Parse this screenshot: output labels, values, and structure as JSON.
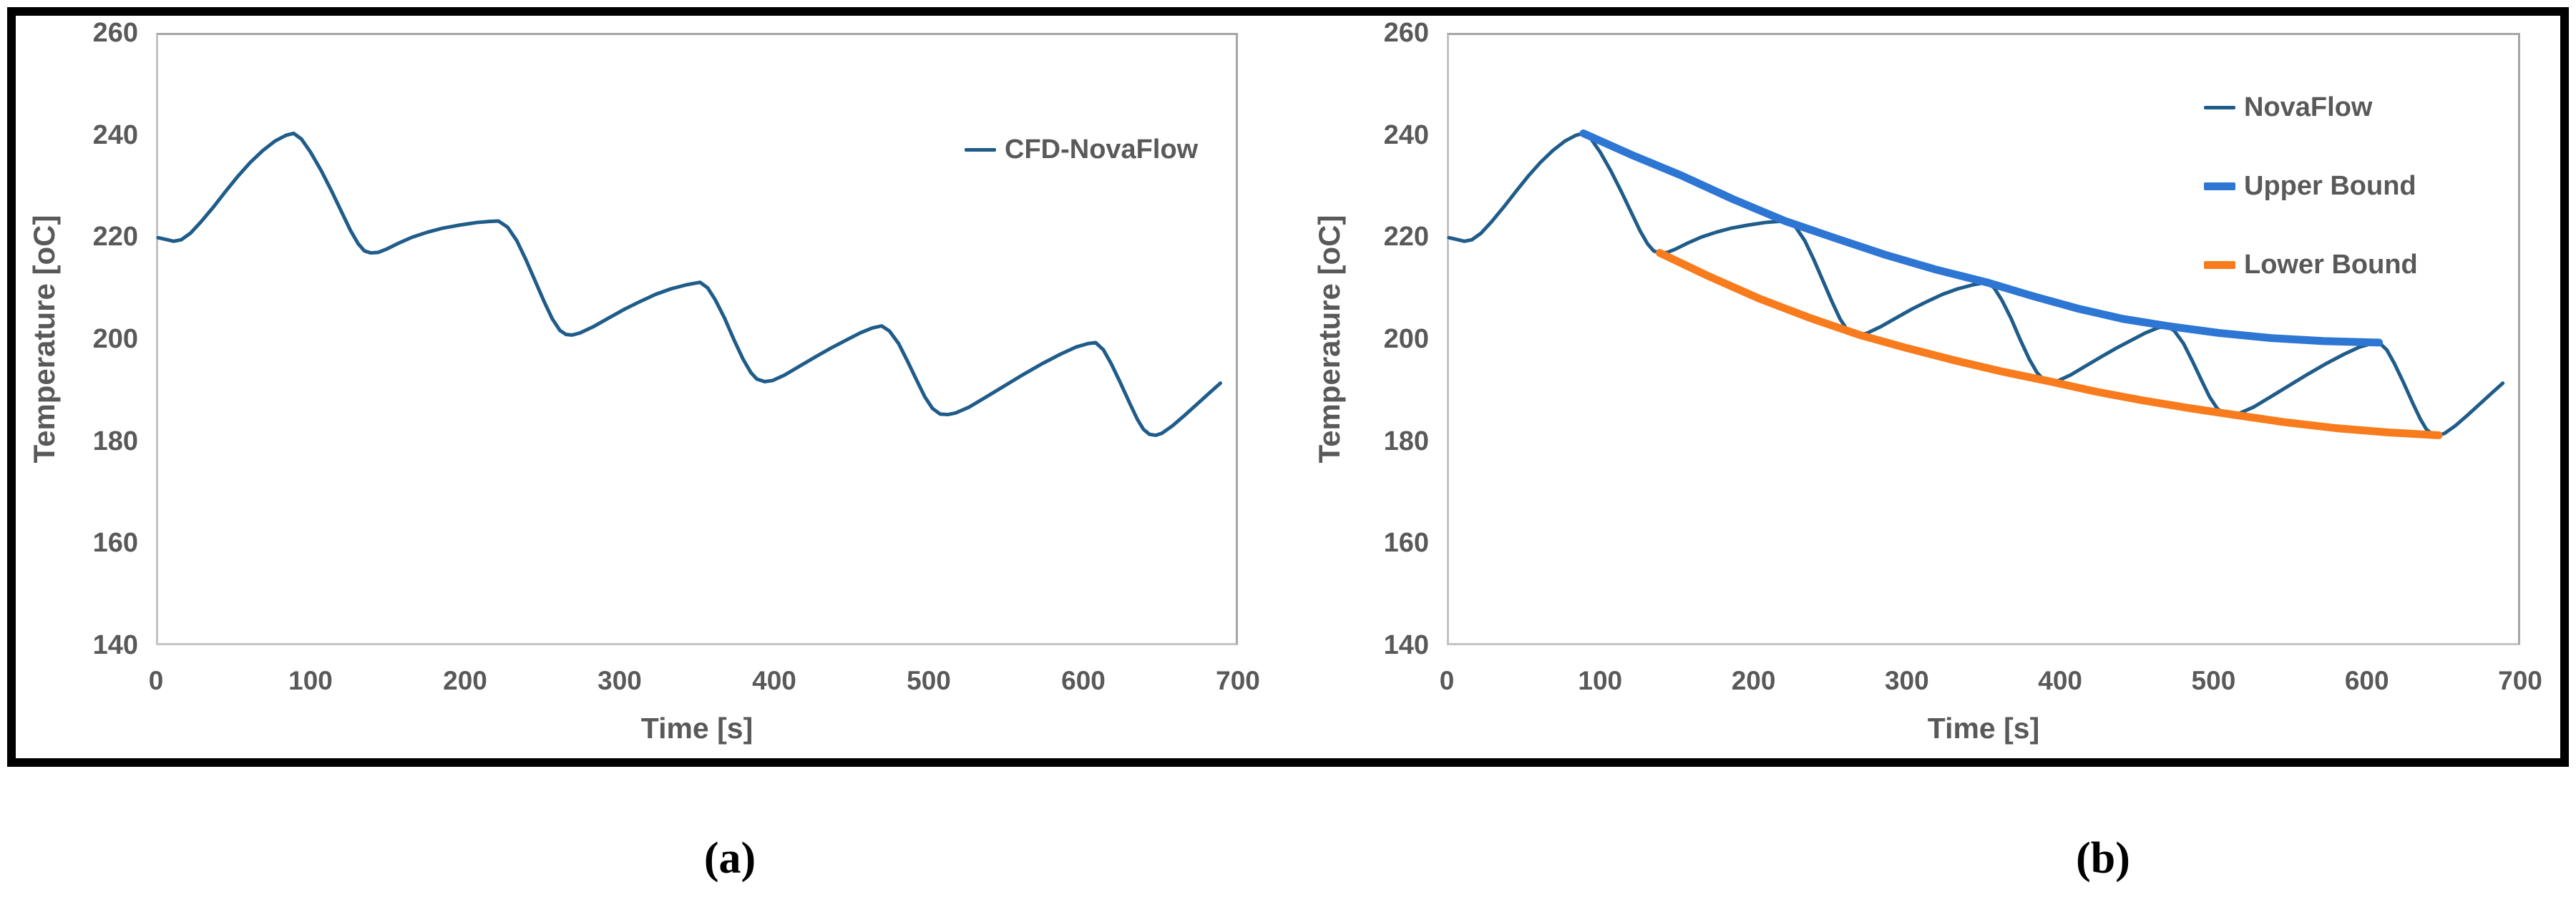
{
  "figure": {
    "background": "#ffffff",
    "border_color": "#000000",
    "plot_border_color": "#bfbfbf",
    "tick_text_color": "#595959"
  },
  "chart_data": [
    {
      "type": "line",
      "caption": "(a)",
      "title": "",
      "xlabel": "Time [s]",
      "ylabel": "Temperature [oC]",
      "xlim": [
        0,
        700
      ],
      "ylim": [
        140,
        260
      ],
      "xticks": [
        0,
        100,
        200,
        300,
        400,
        500,
        600,
        700
      ],
      "yticks": [
        260,
        240,
        220,
        200,
        180,
        160,
        140
      ],
      "grid": false,
      "legend_position": "upper-right-inside",
      "series": [
        {
          "name": "CFD-NovaFlow",
          "color": "#1f5c8a",
          "stroke_width": 5,
          "points": [
            [
              0,
              220
            ],
            [
              6,
              219.6
            ],
            [
              10,
              219.3
            ],
            [
              15,
              219.6
            ],
            [
              21,
              220.9
            ],
            [
              28,
              223.2
            ],
            [
              36,
              226.1
            ],
            [
              44,
              229.2
            ],
            [
              52,
              232.2
            ],
            [
              60,
              234.9
            ],
            [
              68,
              237.2
            ],
            [
              76,
              239.1
            ],
            [
              83,
              240.2
            ],
            [
              88,
              240.6
            ],
            [
              93,
              239.5
            ],
            [
              99,
              236.9
            ],
            [
              106,
              233.2
            ],
            [
              113,
              229
            ],
            [
              119,
              225.2
            ],
            [
              125,
              221.4
            ],
            [
              130,
              218.8
            ],
            [
              134,
              217.4
            ],
            [
              138,
              217
            ],
            [
              143,
              217.1
            ],
            [
              148,
              217.7
            ],
            [
              156,
              218.9
            ],
            [
              165,
              220.1
            ],
            [
              175,
              221.1
            ],
            [
              185,
              221.9
            ],
            [
              196,
              222.5
            ],
            [
              207,
              223
            ],
            [
              215,
              223.2
            ],
            [
              221,
              223.3
            ],
            [
              227,
              222.1
            ],
            [
              233,
              219.4
            ],
            [
              239,
              215.6
            ],
            [
              245,
              211.4
            ],
            [
              251,
              207.2
            ],
            [
              256,
              204
            ],
            [
              261,
              201.7
            ],
            [
              265,
              200.9
            ],
            [
              269,
              200.8
            ],
            [
              274,
              201.2
            ],
            [
              283,
              202.5
            ],
            [
              293,
              204.2
            ],
            [
              303,
              205.9
            ],
            [
              313,
              207.4
            ],
            [
              323,
              208.8
            ],
            [
              333,
              209.9
            ],
            [
              343,
              210.7
            ],
            [
              352,
              211.2
            ],
            [
              357,
              210.1
            ],
            [
              362,
              207.7
            ],
            [
              368,
              204.1
            ],
            [
              374,
              199.9
            ],
            [
              380,
              196
            ],
            [
              385,
              193.4
            ],
            [
              389,
              192.1
            ],
            [
              394,
              191.6
            ],
            [
              399,
              191.8
            ],
            [
              407,
              192.9
            ],
            [
              417,
              194.7
            ],
            [
              427,
              196.5
            ],
            [
              437,
              198.2
            ],
            [
              447,
              199.8
            ],
            [
              456,
              201.2
            ],
            [
              464,
              202.2
            ],
            [
              470,
              202.6
            ],
            [
              475,
              201.6
            ],
            [
              481,
              199.1
            ],
            [
              487,
              195.5
            ],
            [
              493,
              191.7
            ],
            [
              498,
              188.6
            ],
            [
              503,
              186.3
            ],
            [
              508,
              185.2
            ],
            [
              513,
              185.1
            ],
            [
              518,
              185.4
            ],
            [
              527,
              186.6
            ],
            [
              538,
              188.6
            ],
            [
              550,
              190.8
            ],
            [
              562,
              193
            ],
            [
              574,
              195.1
            ],
            [
              586,
              197
            ],
            [
              596,
              198.4
            ],
            [
              604,
              199.1
            ],
            [
              609,
              199.3
            ],
            [
              614,
              197.9
            ],
            [
              619,
              195.2
            ],
            [
              625,
              191.4
            ],
            [
              631,
              187.4
            ],
            [
              636,
              184.2
            ],
            [
              640,
              182.2
            ],
            [
              644,
              181.2
            ],
            [
              648,
              181
            ],
            [
              652,
              181.4
            ],
            [
              659,
              182.9
            ],
            [
              667,
              185
            ],
            [
              675,
              187.2
            ],
            [
              683,
              189.4
            ],
            [
              690,
              191.3
            ]
          ]
        }
      ]
    },
    {
      "type": "line",
      "caption": "(b)",
      "title": "",
      "xlabel": "Time [s]",
      "ylabel": "Temperature [oC]",
      "xlim": [
        0,
        700
      ],
      "ylim": [
        140,
        260
      ],
      "xticks": [
        0,
        100,
        200,
        300,
        400,
        500,
        600,
        700
      ],
      "yticks": [
        260,
        240,
        220,
        200,
        180,
        160,
        140
      ],
      "grid": false,
      "legend_position": "upper-right-inside",
      "series": [
        {
          "name": "NovaFlow",
          "color": "#1f5c8a",
          "stroke_width": 5,
          "points": [
            [
              0,
              220
            ],
            [
              6,
              219.6
            ],
            [
              10,
              219.3
            ],
            [
              15,
              219.6
            ],
            [
              21,
              220.9
            ],
            [
              28,
              223.2
            ],
            [
              36,
              226.1
            ],
            [
              44,
              229.2
            ],
            [
              52,
              232.2
            ],
            [
              60,
              234.9
            ],
            [
              68,
              237.2
            ],
            [
              76,
              239.1
            ],
            [
              83,
              240.2
            ],
            [
              88,
              240.6
            ],
            [
              93,
              239.5
            ],
            [
              99,
              236.9
            ],
            [
              106,
              233.2
            ],
            [
              113,
              229
            ],
            [
              119,
              225.2
            ],
            [
              125,
              221.4
            ],
            [
              130,
              218.8
            ],
            [
              134,
              217.4
            ],
            [
              138,
              217
            ],
            [
              143,
              217.1
            ],
            [
              148,
              217.7
            ],
            [
              156,
              218.9
            ],
            [
              165,
              220.1
            ],
            [
              175,
              221.1
            ],
            [
              185,
              221.9
            ],
            [
              196,
              222.5
            ],
            [
              207,
              223
            ],
            [
              215,
              223.2
            ],
            [
              221,
              223.3
            ],
            [
              227,
              222.1
            ],
            [
              233,
              219.4
            ],
            [
              239,
              215.6
            ],
            [
              245,
              211.4
            ],
            [
              251,
              207.2
            ],
            [
              256,
              204
            ],
            [
              261,
              201.7
            ],
            [
              265,
              200.9
            ],
            [
              269,
              200.8
            ],
            [
              274,
              201.2
            ],
            [
              283,
              202.5
            ],
            [
              293,
              204.2
            ],
            [
              303,
              205.9
            ],
            [
              313,
              207.4
            ],
            [
              323,
              208.8
            ],
            [
              333,
              209.9
            ],
            [
              343,
              210.7
            ],
            [
              352,
              211.2
            ],
            [
              357,
              210.1
            ],
            [
              362,
              207.7
            ],
            [
              368,
              204.1
            ],
            [
              374,
              199.9
            ],
            [
              380,
              196
            ],
            [
              385,
              193.4
            ],
            [
              389,
              192.1
            ],
            [
              394,
              191.6
            ],
            [
              399,
              191.8
            ],
            [
              407,
              192.9
            ],
            [
              417,
              194.7
            ],
            [
              427,
              196.5
            ],
            [
              437,
              198.2
            ],
            [
              447,
              199.8
            ],
            [
              456,
              201.2
            ],
            [
              464,
              202.2
            ],
            [
              470,
              202.6
            ],
            [
              475,
              201.6
            ],
            [
              481,
              199.1
            ],
            [
              487,
              195.5
            ],
            [
              493,
              191.7
            ],
            [
              498,
              188.6
            ],
            [
              503,
              186.3
            ],
            [
              508,
              185.2
            ],
            [
              513,
              185.1
            ],
            [
              518,
              185.4
            ],
            [
              527,
              186.6
            ],
            [
              538,
              188.6
            ],
            [
              550,
              190.8
            ],
            [
              562,
              193
            ],
            [
              574,
              195.1
            ],
            [
              586,
              197
            ],
            [
              596,
              198.4
            ],
            [
              604,
              199.1
            ],
            [
              609,
              199.3
            ],
            [
              614,
              197.9
            ],
            [
              619,
              195.2
            ],
            [
              625,
              191.4
            ],
            [
              631,
              187.4
            ],
            [
              636,
              184.2
            ],
            [
              640,
              182.2
            ],
            [
              644,
              181.2
            ],
            [
              648,
              181
            ],
            [
              652,
              181.4
            ],
            [
              659,
              182.9
            ],
            [
              667,
              185
            ],
            [
              675,
              187.2
            ],
            [
              683,
              189.4
            ],
            [
              690,
              191.3
            ]
          ]
        },
        {
          "name": "Upper Bound",
          "color": "#2e76d4",
          "stroke_width": 11,
          "points": [
            [
              88,
              240.6
            ],
            [
              120,
              236.3
            ],
            [
              152,
              232.3
            ],
            [
              186,
              227.6
            ],
            [
              220,
              223.3
            ],
            [
              253,
              219.9
            ],
            [
              286,
              216.6
            ],
            [
              319,
              213.7
            ],
            [
              352,
              211.2
            ],
            [
              382,
              208.5
            ],
            [
              412,
              206
            ],
            [
              441,
              204
            ],
            [
              470,
              202.6
            ],
            [
              504,
              201.2
            ],
            [
              538,
              200.2
            ],
            [
              573,
              199.6
            ],
            [
              609,
              199.3
            ]
          ]
        },
        {
          "name": "Lower Bound",
          "color": "#f87c1d",
          "stroke_width": 11,
          "points": [
            [
              138,
              217
            ],
            [
              170,
              212.4
            ],
            [
              203,
              208
            ],
            [
              236,
              204.2
            ],
            [
              269,
              200.8
            ],
            [
              300,
              198.2
            ],
            [
              331,
              195.8
            ],
            [
              362,
              193.6
            ],
            [
              394,
              191.6
            ],
            [
              424,
              189.6
            ],
            [
              454,
              187.9
            ],
            [
              484,
              186.4
            ],
            [
              513,
              185.1
            ],
            [
              547,
              183.6
            ],
            [
              581,
              182.4
            ],
            [
              614,
              181.6
            ],
            [
              648,
              181
            ]
          ]
        }
      ]
    }
  ]
}
